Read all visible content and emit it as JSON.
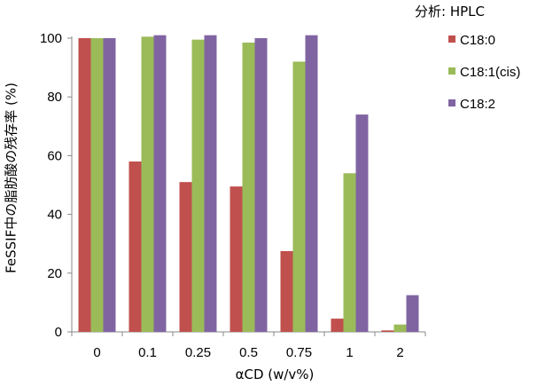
{
  "chart_data": {
    "type": "bar",
    "annotation": "分析: HPLC",
    "xlabel": "αCD (w/v%)",
    "ylabel": "FeSSIF中の脂肪酸の残存率 (%)",
    "categories": [
      "0",
      "0.1",
      "0.25",
      "0.5",
      "0.75",
      "1",
      "2"
    ],
    "ylim": [
      0,
      100
    ],
    "yticks": [
      0,
      20,
      40,
      60,
      80,
      100
    ],
    "grid": false,
    "legend_position": "right",
    "series": [
      {
        "name": "C18:0",
        "color": "#c0504d",
        "values": [
          100,
          58,
          51,
          49.5,
          27.5,
          4.5,
          0.5
        ]
      },
      {
        "name": "C18:1(cis)",
        "color": "#9bbb59",
        "values": [
          100,
          100.5,
          99.5,
          98.5,
          92,
          54,
          2.5
        ]
      },
      {
        "name": "C18:2",
        "color": "#8064a2",
        "values": [
          100,
          101,
          101,
          100,
          101,
          74,
          12.5
        ]
      }
    ]
  }
}
